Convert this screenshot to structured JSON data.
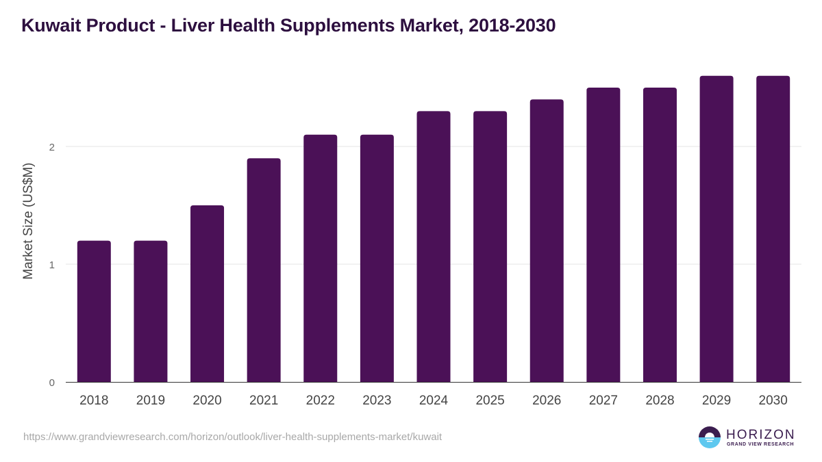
{
  "chart_data": {
    "type": "bar",
    "title": "Kuwait Product - Liver Health Supplements Market, 2018-2030",
    "xlabel": "",
    "ylabel": "Market Size (US$M)",
    "categories": [
      "2018",
      "2019",
      "2020",
      "2021",
      "2022",
      "2023",
      "2024",
      "2025",
      "2026",
      "2027",
      "2028",
      "2029",
      "2030"
    ],
    "values": [
      1.2,
      1.2,
      1.5,
      1.9,
      2.1,
      2.1,
      2.3,
      2.3,
      2.4,
      2.5,
      2.5,
      2.6,
      2.6
    ],
    "ylim": [
      0,
      2.6
    ],
    "yticks": [
      "0",
      "1",
      "2"
    ],
    "grid": true,
    "legend": "none",
    "bar_color": "#4b1157"
  },
  "source_url": "https://www.grandviewresearch.com/horizon/outlook/liver-health-supplements-market/kuwait",
  "logo": {
    "name": "HORIZON",
    "subtitle": "GRAND VIEW RESEARCH",
    "top_color": "#3b1d4f",
    "bottom_color": "#5ec8ef"
  }
}
